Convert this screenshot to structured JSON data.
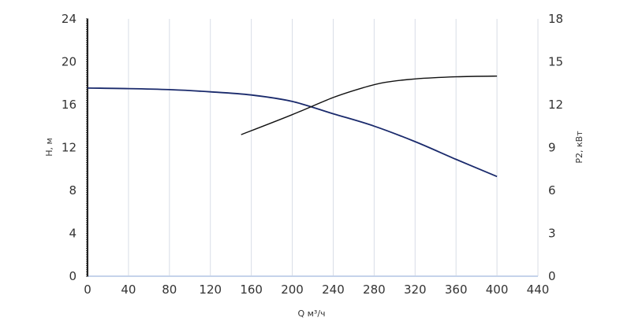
{
  "chart_data": {
    "type": "line",
    "xlabel": "Q м³/ч",
    "ylabel_left": "H, м",
    "ylabel_right": "P2, кВт",
    "x_ticks": [
      0,
      40,
      80,
      120,
      160,
      200,
      240,
      280,
      320,
      360,
      400,
      440
    ],
    "y_left_ticks": [
      0,
      4,
      8,
      12,
      16,
      20,
      24
    ],
    "y_right_ticks": [
      0,
      3,
      6,
      9,
      12,
      15,
      18
    ],
    "xlim": [
      0,
      440
    ],
    "ylim_left": [
      0,
      24
    ],
    "ylim_right": [
      0,
      18
    ],
    "grid": "vertical",
    "colors": {
      "head": "#1a2a6c",
      "power": "#111111",
      "grid": "#d8dde6",
      "x_axis": "#c5d3ea",
      "left_axis": "#222222"
    },
    "series": [
      {
        "axis": "left",
        "color": "#1a2a6c",
        "points": [
          [
            0,
            17.55
          ],
          [
            40,
            17.5
          ],
          [
            80,
            17.4
          ],
          [
            120,
            17.2
          ],
          [
            160,
            16.9
          ],
          [
            200,
            16.3
          ],
          [
            240,
            15.15
          ],
          [
            280,
            14.0
          ],
          [
            320,
            12.55
          ],
          [
            360,
            10.9
          ],
          [
            400,
            9.3
          ]
        ]
      },
      {
        "axis": "right",
        "color": "#111111",
        "points": [
          [
            150,
            9.9
          ],
          [
            200,
            11.3
          ],
          [
            240,
            12.5
          ],
          [
            270,
            13.2
          ],
          [
            290,
            13.55
          ],
          [
            320,
            13.8
          ],
          [
            360,
            13.95
          ],
          [
            400,
            14.0
          ]
        ]
      }
    ]
  }
}
